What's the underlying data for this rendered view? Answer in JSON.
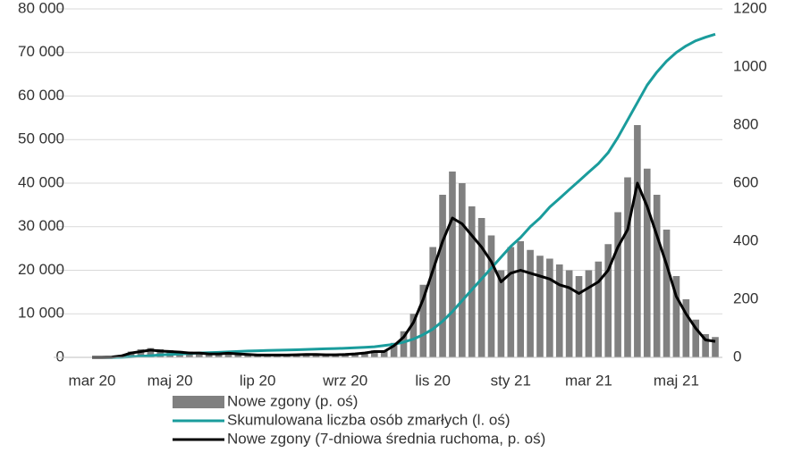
{
  "chart_data": {
    "type": "combo",
    "categories": [
      "mar 20",
      null,
      null,
      null,
      null,
      null,
      null,
      null,
      "maj 20",
      null,
      null,
      null,
      null,
      null,
      null,
      null,
      null,
      "lip 20",
      null,
      null,
      null,
      null,
      null,
      null,
      null,
      null,
      "wrz 20",
      null,
      null,
      null,
      null,
      null,
      null,
      null,
      null,
      "lis 20",
      null,
      null,
      null,
      null,
      null,
      null,
      null,
      "sty 21",
      null,
      null,
      null,
      null,
      null,
      null,
      null,
      "mar 21",
      null,
      null,
      null,
      null,
      null,
      null,
      null,
      null,
      "maj 21",
      null,
      null,
      null,
      null
    ],
    "series": [
      {
        "name": "Nowe zgony (p. oś)",
        "type": "bar",
        "axis": "y2",
        "color": "#808080",
        "values": [
          0,
          0,
          2,
          8,
          20,
          28,
          32,
          28,
          25,
          22,
          20,
          18,
          15,
          15,
          17,
          14,
          12,
          10,
          10,
          10,
          10,
          11,
          12,
          12,
          11,
          11,
          12,
          15,
          18,
          24,
          25,
          50,
          90,
          150,
          250,
          380,
          560,
          640,
          600,
          520,
          480,
          420,
          300,
          380,
          400,
          370,
          350,
          340,
          320,
          300,
          280,
          300,
          330,
          390,
          500,
          620,
          800,
          650,
          560,
          440,
          280,
          200,
          130,
          80,
          70
        ]
      },
      {
        "name": "Skumulowana liczba osób zmarłych (l. oś)",
        "type": "line",
        "color": "#1a9c9c",
        "values": [
          0,
          0,
          5,
          30,
          120,
          250,
          400,
          550,
          650,
          750,
          880,
          1000,
          1080,
          1150,
          1250,
          1350,
          1450,
          1520,
          1600,
          1650,
          1700,
          1750,
          1820,
          1890,
          1960,
          2030,
          2100,
          2200,
          2300,
          2450,
          2700,
          3000,
          3500,
          4200,
          5200,
          6500,
          8300,
          10500,
          13000,
          15500,
          18000,
          20500,
          23000,
          25500,
          27500,
          30000,
          32000,
          34500,
          36500,
          38500,
          40500,
          42500,
          44500,
          47000,
          50500,
          54500,
          58500,
          62500,
          65500,
          68000,
          70000,
          71500,
          72700,
          73500,
          74200
        ]
      },
      {
        "name": "Nowe zgony (7-dniowa średnia ruchoma, p. oś)",
        "type": "line",
        "axis": "y2",
        "color": "#000000",
        "values": [
          0,
          0,
          1,
          5,
          15,
          20,
          25,
          22,
          20,
          18,
          15,
          15,
          12,
          12,
          14,
          12,
          10,
          8,
          8,
          8,
          8,
          9,
          10,
          10,
          9,
          9,
          10,
          12,
          15,
          20,
          20,
          40,
          70,
          120,
          200,
          300,
          400,
          480,
          460,
          420,
          380,
          330,
          260,
          290,
          300,
          290,
          280,
          270,
          250,
          240,
          220,
          240,
          260,
          300,
          380,
          440,
          600,
          520,
          420,
          320,
          210,
          150,
          100,
          60,
          55
        ]
      }
    ],
    "ylim": [
      0,
      80000
    ],
    "yticks": [
      0,
      {
        "value": 10000,
        "label": "10 000"
      },
      {
        "value": 20000,
        "label": "20 000"
      },
      {
        "value": 30000,
        "label": "30 000"
      },
      {
        "value": 40000,
        "label": "40 000"
      },
      {
        "value": 50000,
        "label": "50 000"
      },
      {
        "value": 60000,
        "label": "60 000"
      },
      {
        "value": 70000,
        "label": "70 000"
      },
      {
        "value": 80000,
        "label": "80 000"
      }
    ],
    "y2lim": [
      0,
      1200
    ],
    "y2ticks": [
      0,
      200,
      400,
      600,
      800,
      1000,
      1200
    ],
    "grid": true,
    "legend": "bottom"
  }
}
